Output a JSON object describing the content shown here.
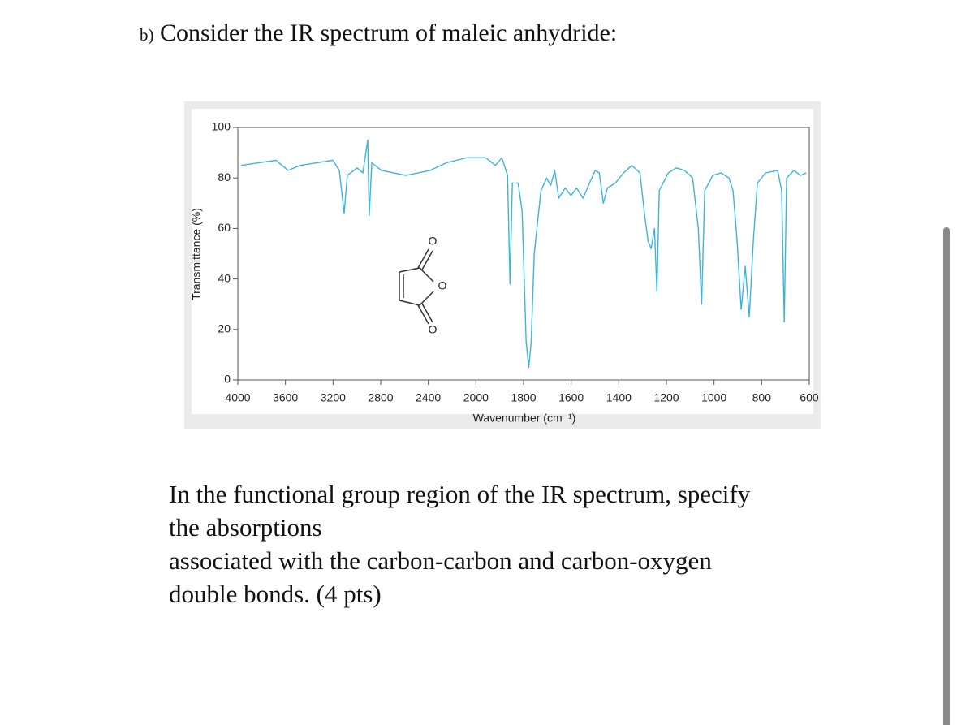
{
  "header": {
    "label": "b)",
    "text": "Consider the IR spectrum of maleic anhydride:"
  },
  "chart_data": {
    "type": "line",
    "ylabel": "Transmittance (%)",
    "xlabel": "Wavenumber (cm⁻¹)",
    "structure_atoms": [
      "O",
      "O",
      "O"
    ],
    "color": "#3cb4dc",
    "xlim": [
      4000,
      600
    ],
    "ylim": [
      0,
      100
    ],
    "xticks": [
      4000,
      3600,
      3200,
      2800,
      2400,
      2000,
      1800,
      1600,
      1400,
      1200,
      1000,
      800,
      600
    ],
    "yticks": [
      0,
      20,
      40,
      60,
      80,
      100
    ],
    "x": [
      3973,
      3680,
      3577,
      3475,
      3202,
      3148,
      3107,
      3080,
      2998,
      2950,
      2909,
      2896,
      2875,
      2793,
      2589,
      2384,
      2248,
      2077,
      1959,
      1918,
      1891,
      1867,
      1857,
      1847,
      1823,
      1806,
      1789,
      1778,
      1768,
      1755,
      1727,
      1703,
      1686,
      1669,
      1652,
      1625,
      1601,
      1577,
      1550,
      1523,
      1499,
      1482,
      1465,
      1448,
      1414,
      1380,
      1345,
      1311,
      1291,
      1277,
      1264,
      1250,
      1240,
      1230,
      1192,
      1158,
      1124,
      1090,
      1066,
      1052,
      1039,
      1005,
      971,
      937,
      920,
      903,
      886,
      869,
      852,
      835,
      818,
      784,
      733,
      716,
      705,
      695,
      664,
      637,
      613
    ],
    "values": [
      85,
      87,
      83,
      85,
      87,
      83,
      66,
      81,
      84,
      82,
      95,
      65,
      86,
      83,
      81,
      83,
      86,
      88,
      88,
      85,
      88,
      81,
      38,
      78,
      78,
      67,
      15,
      5,
      15,
      50,
      75,
      80,
      77,
      83,
      72,
      76,
      73,
      76,
      72,
      78,
      83,
      82,
      70,
      76,
      78,
      82,
      85,
      82,
      65,
      55,
      52,
      60,
      35,
      75,
      82,
      84,
      83,
      80,
      60,
      30,
      75,
      81,
      82,
      80,
      75,
      55,
      28,
      45,
      25,
      55,
      78,
      82,
      83,
      75,
      23,
      80,
      83,
      81,
      82
    ]
  },
  "question": {
    "lines": [
      "In the functional group region of the IR spectrum, specify",
      "the absorptions",
      "associated with the carbon-carbon and carbon-oxygen",
      "double bonds. (4 pts)"
    ]
  }
}
